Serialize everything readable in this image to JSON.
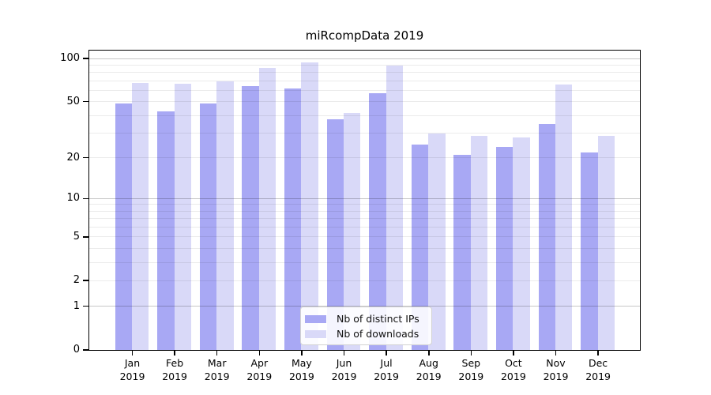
{
  "title": "miRcompData 2019",
  "colors": {
    "ips_bar": "#a8a8f4",
    "downloads_bar": "#d9d9f8",
    "grid_decade": "rgba(0,0,0,0.22)",
    "grid_minor": "rgba(0,0,0,0.08)",
    "axis": "#000000"
  },
  "legend": {
    "items": [
      {
        "label": "Nb of distinct IPs",
        "series": "ips"
      },
      {
        "label": "Nb of downloads",
        "series": "downloads"
      }
    ]
  },
  "y_axis": {
    "ticks": [
      0,
      1,
      2,
      5,
      10,
      20,
      50,
      100
    ],
    "gridlines": [
      1,
      2,
      3,
      4,
      5,
      6,
      7,
      8,
      9,
      10,
      20,
      30,
      40,
      50,
      60,
      70,
      80,
      90,
      100
    ],
    "decade_lines": [
      1,
      10,
      100
    ],
    "scale": "log10(1+y)"
  },
  "x_axis": {
    "labels": [
      [
        "Jan",
        "2019"
      ],
      [
        "Feb",
        "2019"
      ],
      [
        "Mar",
        "2019"
      ],
      [
        "Apr",
        "2019"
      ],
      [
        "May",
        "2019"
      ],
      [
        "Jun",
        "2019"
      ],
      [
        "Jul",
        "2019"
      ],
      [
        "Aug",
        "2019"
      ],
      [
        "Sep",
        "2019"
      ],
      [
        "Oct",
        "2019"
      ],
      [
        "Nov",
        "2019"
      ],
      [
        "Dec",
        "2019"
      ]
    ]
  },
  "chart_data": {
    "type": "bar",
    "title": "miRcompData 2019",
    "categories": [
      "Jan 2019",
      "Feb 2019",
      "Mar 2019",
      "Apr 2019",
      "May 2019",
      "Jun 2019",
      "Jul 2019",
      "Aug 2019",
      "Sep 2019",
      "Oct 2019",
      "Nov 2019",
      "Dec 2019"
    ],
    "series": [
      {
        "name": "Nb of distinct IPs",
        "values": [
          49,
          43,
          49,
          65,
          62,
          38,
          58,
          25,
          21,
          24,
          35,
          22
        ]
      },
      {
        "name": "Nb of downloads",
        "values": [
          68,
          67,
          70,
          87,
          95,
          42,
          90,
          30,
          29,
          28,
          66,
          29
        ]
      }
    ],
    "xlabel": "",
    "ylabel": "",
    "yscale": "log10(1+y)",
    "y_ticks": [
      0,
      1,
      2,
      5,
      10,
      20,
      50,
      100
    ],
    "ylim": [
      0,
      115
    ],
    "grid": true,
    "grid_on_top": true,
    "legend_position": "lower center"
  }
}
